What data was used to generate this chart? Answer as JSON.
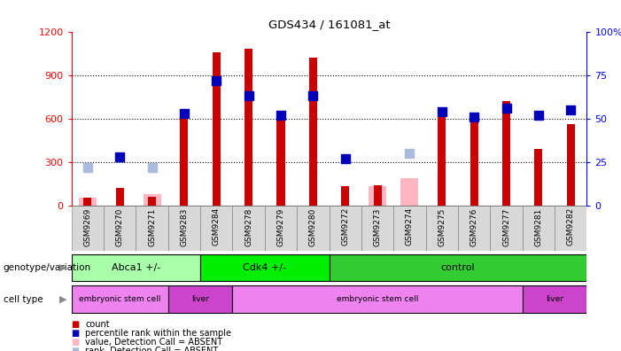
{
  "title": "GDS434 / 161081_at",
  "samples": [
    "GSM9269",
    "GSM9270",
    "GSM9271",
    "GSM9283",
    "GSM9284",
    "GSM9278",
    "GSM9279",
    "GSM9280",
    "GSM9272",
    "GSM9273",
    "GSM9274",
    "GSM9275",
    "GSM9276",
    "GSM9277",
    "GSM9281",
    "GSM9282"
  ],
  "counts": [
    50,
    120,
    60,
    620,
    1060,
    1080,
    590,
    1020,
    130,
    140,
    0,
    640,
    640,
    720,
    390,
    560
  ],
  "counts_absent": [
    55,
    0,
    80,
    0,
    0,
    0,
    0,
    0,
    0,
    130,
    190,
    0,
    0,
    0,
    0,
    0
  ],
  "ranks": [
    0,
    28,
    0,
    53,
    72,
    63,
    52,
    63,
    27,
    0,
    0,
    54,
    51,
    56,
    52,
    55
  ],
  "ranks_absent": [
    22,
    0,
    22,
    0,
    0,
    0,
    0,
    0,
    0,
    0,
    30,
    0,
    0,
    0,
    0,
    0
  ],
  "genotype_groups": [
    {
      "label": "Abca1 +/-",
      "start": 0,
      "end": 4,
      "color": "#aaffaa"
    },
    {
      "label": "Cdk4 +/-",
      "start": 4,
      "end": 8,
      "color": "#00ee00"
    },
    {
      "label": "control",
      "start": 8,
      "end": 16,
      "color": "#33cc33"
    }
  ],
  "celltype_groups": [
    {
      "label": "embryonic stem cell",
      "start": 0,
      "end": 3,
      "color": "#ee82ee"
    },
    {
      "label": "liver",
      "start": 3,
      "end": 5,
      "color": "#cc44cc"
    },
    {
      "label": "embryonic stem cell",
      "start": 5,
      "end": 14,
      "color": "#ee82ee"
    },
    {
      "label": "liver",
      "start": 14,
      "end": 16,
      "color": "#cc44cc"
    }
  ],
  "bar_color": "#cc0000",
  "rank_color": "#0000bb",
  "absent_bar_color": "#ffb6c1",
  "absent_rank_color": "#aabbdd",
  "ylim_left": [
    0,
    1200
  ],
  "ylim_right": [
    0,
    100
  ],
  "yticks_left": [
    0,
    300,
    600,
    900,
    1200
  ],
  "yticks_right": [
    0,
    25,
    50,
    75,
    100
  ],
  "yticklabels_right": [
    "0",
    "25",
    "50",
    "75",
    "100%"
  ]
}
